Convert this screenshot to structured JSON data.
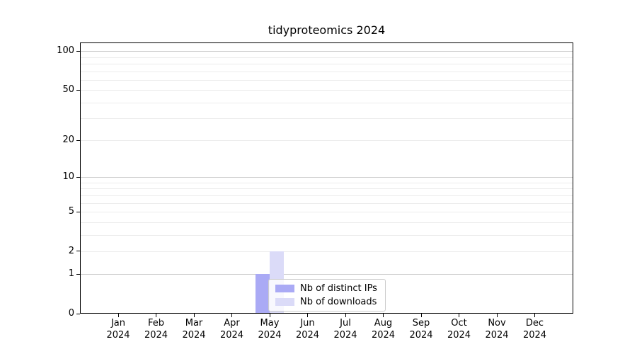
{
  "chart_data": {
    "type": "bar",
    "title": "tidyproteomics 2024",
    "categories": [
      "Jan",
      "Feb",
      "Mar",
      "Apr",
      "May",
      "Jun",
      "Jul",
      "Aug",
      "Sep",
      "Oct",
      "Nov",
      "Dec"
    ],
    "category_year": "2024",
    "series": [
      {
        "name": "Nb of distinct IPs",
        "color": "#aaaaf5",
        "values": [
          0,
          0,
          0,
          0,
          1,
          0,
          0,
          0,
          0,
          0,
          0,
          0
        ]
      },
      {
        "name": "Nb of downloads",
        "color": "#dbdbf8",
        "values": [
          0,
          0,
          0,
          0,
          2,
          0,
          0,
          0,
          0,
          0,
          0,
          0
        ]
      }
    ],
    "xlabel": "",
    "ylabel": "",
    "y_axis": {
      "scale": "log1p",
      "ticks": [
        0,
        1,
        2,
        5,
        10,
        20,
        50,
        100
      ],
      "minor_gridlines": [
        2,
        3,
        4,
        5,
        6,
        7,
        8,
        9,
        20,
        30,
        40,
        50,
        60,
        70,
        80,
        90
      ],
      "major_gridlines": [
        1,
        10,
        100
      ],
      "range": [
        0,
        113
      ]
    },
    "grid": {
      "axis": "y",
      "major_color": "#cccccc",
      "minor_color": "#ececec"
    },
    "legend": {
      "position": "inset lower-center"
    },
    "colors": {
      "spine": "#000000",
      "background": "#ffffff"
    }
  }
}
